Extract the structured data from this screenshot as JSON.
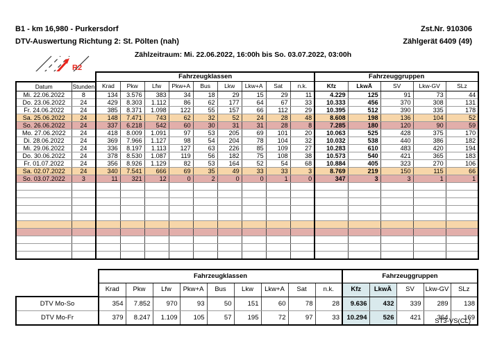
{
  "header": {
    "station": "B1 - km 16,980 - Purkersdorf",
    "zst_nr": "Zst.Nr. 910306",
    "title": "DTV-Auswertung Richtung 2: St. Pölten (nah)",
    "device": "Zählgerät 6409 (49)",
    "period": "Zählzeitraum: Mi. 22.06.2022, 16:00h bis So. 03.07.2022, 03:00h",
    "direction_badge": "R2"
  },
  "table": {
    "group_headers": {
      "classes": "Fahrzeugklassen",
      "groups": "Fahrzeuggruppen"
    },
    "columns": [
      "Datum",
      "Stunden",
      "Krad",
      "Pkw",
      "Lfw",
      "Pkw+A",
      "Bus",
      "Lkw",
      "Lkw+A",
      "Sat",
      "n.k.",
      "Kfz",
      "LkwÄ",
      "SV",
      "Lkw-GV",
      "SLz"
    ],
    "rows": [
      {
        "datum": "Mi. 22.06.2022",
        "stunden": "8",
        "values": [
          "134",
          "3.576",
          "383",
          "34",
          "18",
          "29",
          "15",
          "29",
          "11",
          "4.229",
          "125",
          "91",
          "73",
          "44"
        ],
        "highlight": ""
      },
      {
        "datum": "Do. 23.06.2022",
        "stunden": "24",
        "values": [
          "429",
          "8.303",
          "1.112",
          "86",
          "62",
          "177",
          "64",
          "67",
          "33",
          "10.333",
          "456",
          "370",
          "308",
          "131"
        ],
        "highlight": ""
      },
      {
        "datum": "Fr. 24.06.2022",
        "stunden": "24",
        "values": [
          "385",
          "8.371",
          "1.098",
          "122",
          "55",
          "157",
          "66",
          "112",
          "29",
          "10.395",
          "512",
          "390",
          "335",
          "178"
        ],
        "highlight": ""
      },
      {
        "datum": "Sa. 25.06.2022",
        "stunden": "24",
        "values": [
          "148",
          "7.471",
          "743",
          "62",
          "32",
          "52",
          "24",
          "28",
          "48",
          "8.608",
          "198",
          "136",
          "104",
          "52"
        ],
        "highlight": "sat"
      },
      {
        "datum": "So. 26.06.2022",
        "stunden": "24",
        "values": [
          "337",
          "6.218",
          "542",
          "60",
          "30",
          "31",
          "31",
          "28",
          "8",
          "7.285",
          "180",
          "120",
          "90",
          "59"
        ],
        "highlight": "sun"
      },
      {
        "datum": "Mo. 27.06.2022",
        "stunden": "24",
        "values": [
          "418",
          "8.009",
          "1.091",
          "97",
          "53",
          "205",
          "69",
          "101",
          "20",
          "10.063",
          "525",
          "428",
          "375",
          "170"
        ],
        "highlight": ""
      },
      {
        "datum": "Di. 28.06.2022",
        "stunden": "24",
        "values": [
          "369",
          "7.966",
          "1.127",
          "98",
          "54",
          "204",
          "78",
          "104",
          "32",
          "10.032",
          "538",
          "440",
          "386",
          "182"
        ],
        "highlight": ""
      },
      {
        "datum": "Mi. 29.06.2022",
        "stunden": "24",
        "values": [
          "336",
          "8.197",
          "1.113",
          "127",
          "63",
          "226",
          "85",
          "109",
          "27",
          "10.283",
          "610",
          "483",
          "420",
          "194"
        ],
        "highlight": ""
      },
      {
        "datum": "Do. 30.06.2022",
        "stunden": "24",
        "values": [
          "378",
          "8.530",
          "1.087",
          "119",
          "56",
          "182",
          "75",
          "108",
          "38",
          "10.573",
          "540",
          "421",
          "365",
          "183"
        ],
        "highlight": ""
      },
      {
        "datum": "Fr. 01.07.2022",
        "stunden": "24",
        "values": [
          "356",
          "8.926",
          "1.129",
          "82",
          "53",
          "164",
          "52",
          "54",
          "68",
          "10.884",
          "405",
          "323",
          "270",
          "106"
        ],
        "highlight": ""
      },
      {
        "datum": "Sa. 02.07.2022",
        "stunden": "24",
        "values": [
          "340",
          "7.541",
          "666",
          "69",
          "35",
          "49",
          "33",
          "33",
          "3",
          "8.769",
          "219",
          "150",
          "115",
          "66"
        ],
        "highlight": "sat"
      },
      {
        "datum": "So. 03.07.2022",
        "stunden": "3",
        "values": [
          "11",
          "321",
          "12",
          "0",
          "2",
          "0",
          "0",
          "1",
          "0",
          "347",
          "3",
          "3",
          "1",
          "1"
        ],
        "highlight": "sun"
      }
    ],
    "empty_rows": [
      "",
      "",
      "",
      "",
      "",
      "sat",
      "sun",
      "",
      "",
      ""
    ]
  },
  "summary_table": {
    "group_headers": {
      "classes": "Fahrzeugklassen",
      "groups": "Fahrzeuggruppen"
    },
    "columns": [
      "Krad",
      "Pkw",
      "Lfw",
      "Pkw+A",
      "Bus",
      "Lkw",
      "Lkw+A",
      "Sat",
      "n.k.",
      "Kfz",
      "LkwÄ",
      "SV",
      "Lkw-GV",
      "SLz"
    ],
    "rows": [
      {
        "label": "DTV Mo-So",
        "values": [
          "354",
          "7.852",
          "970",
          "93",
          "50",
          "151",
          "60",
          "78",
          "28",
          "9.636",
          "432",
          "339",
          "289",
          "138"
        ]
      },
      {
        "label": "DTV Mo-Fr",
        "values": [
          "379",
          "8.247",
          "1.109",
          "105",
          "57",
          "195",
          "72",
          "97",
          "33",
          "10.294",
          "526",
          "421",
          "364",
          "169"
        ]
      }
    ]
  },
  "footer": {
    "code": "ST3-VS(CL)"
  },
  "colors": {
    "saturday_row": "#F7D6A9",
    "sunday_row": "#E2AEAA",
    "kfz_highlight": "#D9E9EC",
    "accent_red": "#E8251D"
  }
}
